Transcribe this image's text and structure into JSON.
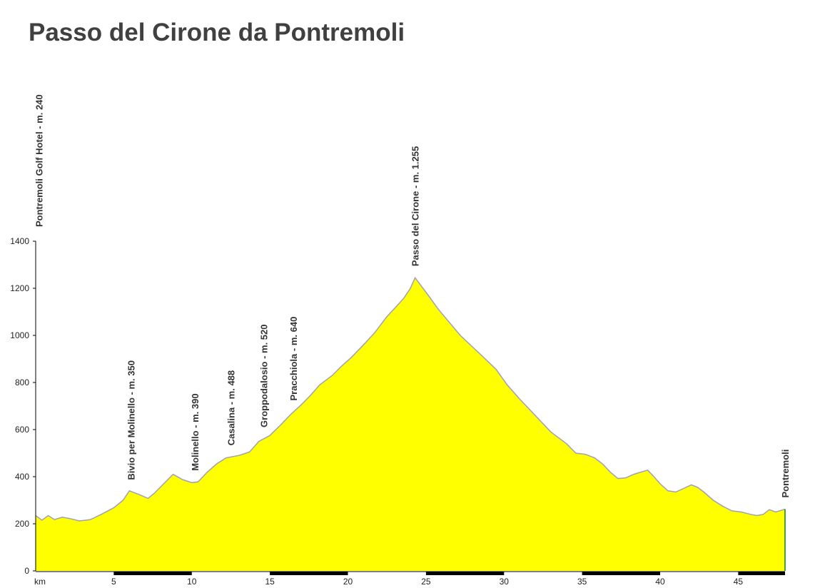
{
  "title": "Passo del Cirone da Pontremoli",
  "chart_data": {
    "type": "area",
    "title": "Passo del Cirone da Pontremoli",
    "xlabel": "km",
    "ylabel": "",
    "xlim": [
      0,
      48
    ],
    "ylim": [
      0,
      1400
    ],
    "yticks": [
      0,
      200,
      400,
      600,
      800,
      1000,
      1200,
      1400
    ],
    "xticks": [
      5,
      10,
      15,
      20,
      25,
      30,
      35,
      40,
      45
    ],
    "grid": false,
    "fill_color": "#ffff00",
    "line_color": "#a0a0b8",
    "x": [
      0,
      0.4,
      0.8,
      1.2,
      1.7,
      2.2,
      2.8,
      3.5,
      4.2,
      5.0,
      5.6,
      6.0,
      6.6,
      7.2,
      7.6,
      8.2,
      8.8,
      9.4,
      10.0,
      10.4,
      11.0,
      11.6,
      12.2,
      13.0,
      13.7,
      14.3,
      15.0,
      15.7,
      16.3,
      17.0,
      17.6,
      18.2,
      19.0,
      19.6,
      20.2,
      21.0,
      21.7,
      22.5,
      23.2,
      23.6,
      24.0,
      24.3,
      24.7,
      25.2,
      25.8,
      26.5,
      27.2,
      28.0,
      28.8,
      29.5,
      30.2,
      31.0,
      32.0,
      33.0,
      34.0,
      34.6,
      35.2,
      35.8,
      36.3,
      36.8,
      37.3,
      37.8,
      38.3,
      38.8,
      39.2,
      39.6,
      40.0,
      40.5,
      41.0,
      41.5,
      42.0,
      42.4,
      42.8,
      43.4,
      44.0,
      44.6,
      45.2,
      45.8,
      46.2,
      46.6,
      47.0,
      47.4,
      47.8,
      48.0
    ],
    "y": [
      235,
      215,
      235,
      218,
      228,
      222,
      212,
      218,
      240,
      268,
      300,
      340,
      325,
      308,
      330,
      370,
      410,
      388,
      375,
      378,
      420,
      455,
      480,
      490,
      505,
      550,
      575,
      620,
      662,
      705,
      745,
      790,
      830,
      870,
      905,
      960,
      1010,
      1080,
      1130,
      1160,
      1200,
      1245,
      1210,
      1165,
      1110,
      1055,
      1000,
      950,
      900,
      855,
      790,
      730,
      660,
      590,
      540,
      500,
      495,
      480,
      455,
      420,
      392,
      395,
      410,
      420,
      428,
      400,
      370,
      340,
      335,
      350,
      365,
      355,
      335,
      300,
      275,
      255,
      250,
      240,
      235,
      240,
      260,
      250,
      258,
      262
    ],
    "annotations": [
      {
        "text": "Pontremoli Golf Hotel - m. 240",
        "km": 0.2
      },
      {
        "text": "Bivio per Molinello - m. 350",
        "km": 6.1
      },
      {
        "text": "Molinello - m. 390",
        "km": 10.2
      },
      {
        "text": "Casalina - m. 488",
        "km": 12.5
      },
      {
        "text": "Groppodalosio - m. 520",
        "km": 14.6
      },
      {
        "text": "Pracchiola - m. 640",
        "km": 16.5
      },
      {
        "text": "Passo del Cirone - m. 1.255",
        "km": 24.3
      },
      {
        "text": "Pontremoli",
        "km": 48.0
      }
    ]
  }
}
